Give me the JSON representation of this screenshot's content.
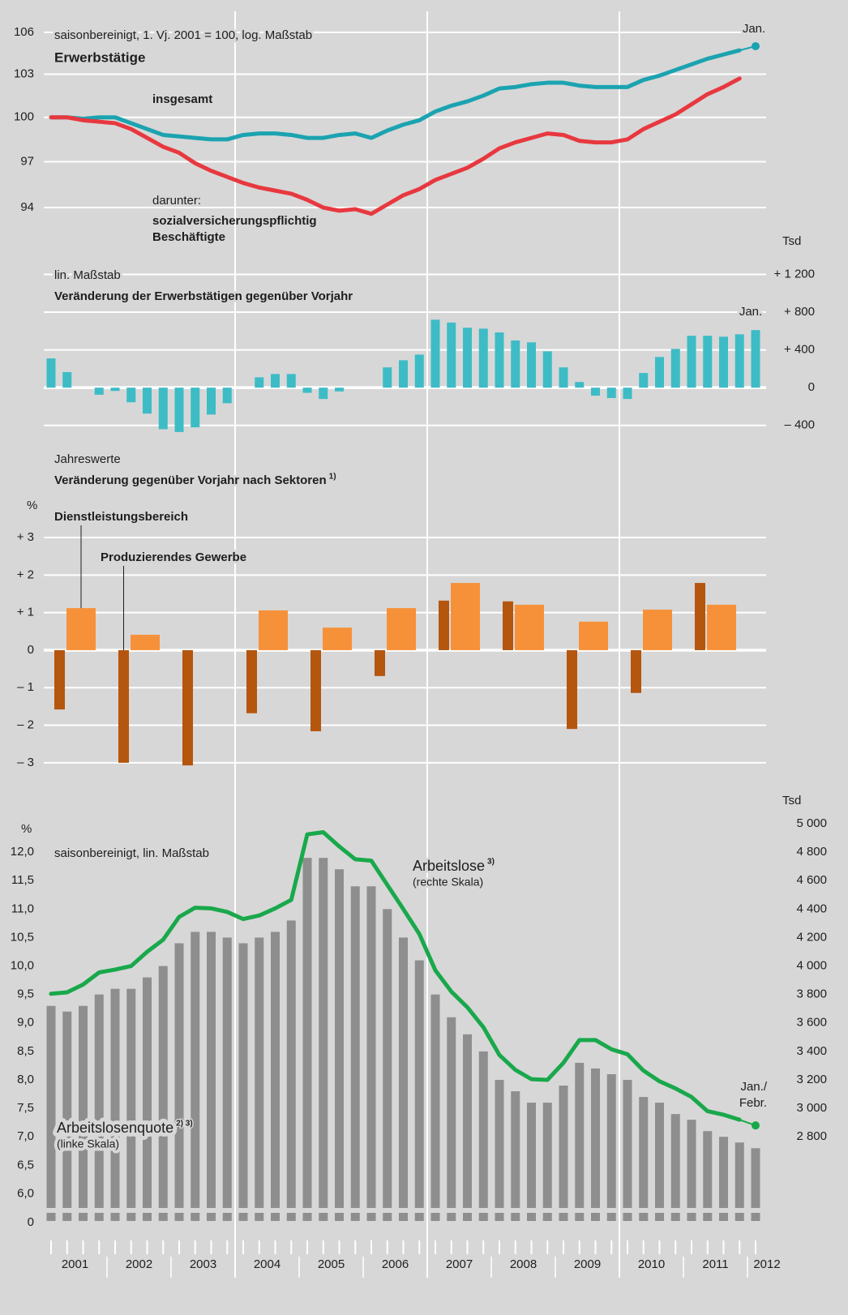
{
  "x_axis": {
    "labels": [
      "2001",
      "2002",
      "2003",
      "2004",
      "2005",
      "2006",
      "2007",
      "2008",
      "2009",
      "2010",
      "2011",
      "2012"
    ]
  },
  "chart_data": [
    {
      "type": "line",
      "subtitle": "saisonbereinigt, 1. Vj. 2001 = 100, log. Maßstab",
      "title": "Erwerbstätige",
      "end_label": "Jan.",
      "group_label": "darunter:",
      "log_scale": true,
      "grid": true,
      "ylim": [
        92.5,
        107
      ],
      "yticks": [
        94,
        97,
        100,
        103,
        106
      ],
      "series": [
        {
          "name": "insgesamt",
          "color": "#1ba3b0",
          "values": [
            100.0,
            100.0,
            99.9,
            100.0,
            100.0,
            99.6,
            99.2,
            98.8,
            98.7,
            98.6,
            98.5,
            98.5,
            98.8,
            98.9,
            98.9,
            98.8,
            98.6,
            98.6,
            98.8,
            98.9,
            98.6,
            99.1,
            99.5,
            99.8,
            100.4,
            100.8,
            101.1,
            101.5,
            102.0,
            102.1,
            102.3,
            102.4,
            102.4,
            102.2,
            102.1,
            102.1,
            102.1,
            102.6,
            102.9,
            103.3,
            103.7,
            104.1,
            104.4,
            104.7,
            105.0
          ]
        },
        {
          "name": "sozialversicherungspflichtig Beschäftigte",
          "color": "#e8383f",
          "values": [
            100.0,
            100.0,
            99.8,
            99.7,
            99.6,
            99.2,
            98.6,
            98.0,
            97.6,
            96.9,
            96.4,
            96.0,
            95.6,
            95.3,
            95.1,
            94.9,
            94.5,
            94.0,
            93.8,
            93.9,
            93.6,
            94.2,
            94.8,
            95.2,
            95.8,
            96.2,
            96.6,
            97.2,
            97.9,
            98.3,
            98.6,
            98.9,
            98.8,
            98.4,
            98.3,
            98.3,
            98.5,
            99.2,
            99.7,
            100.2,
            100.9,
            101.6,
            102.1,
            102.7,
            null
          ]
        }
      ]
    },
    {
      "type": "bar",
      "unit": "Tsd",
      "subtitle": "lin. Maßstab",
      "title": "Veränderung der Erwerbstätigen gegenüber Vorjahr",
      "end_label": "Jan.",
      "color": "#3dbcc6",
      "grid": true,
      "ylim": [
        -600,
        1350
      ],
      "yticks": [
        {
          "value": 1200,
          "label": "+ 1 200"
        },
        {
          "value": 800,
          "label": "+ 800"
        },
        {
          "value": 400,
          "label": "+ 400"
        },
        0,
        {
          "value": -400,
          "label": "– 400"
        }
      ],
      "values": [
        310,
        165,
        0,
        -75,
        -35,
        -155,
        -275,
        -440,
        -470,
        -420,
        -285,
        -165,
        0,
        110,
        145,
        145,
        -55,
        -120,
        -40,
        0,
        0,
        215,
        290,
        350,
        720,
        690,
        635,
        625,
        585,
        500,
        480,
        385,
        215,
        60,
        -85,
        -110,
        -120,
        155,
        325,
        410,
        550,
        550,
        540,
        565,
        610
      ]
    },
    {
      "type": "grouped_bar",
      "subtitle": "Jahreswerte",
      "title": "Veränderung gegenüber Vorjahr nach Sektoren",
      "title_note": "1)",
      "unit": "%",
      "grid": true,
      "ylim": [
        -3.5,
        3.8
      ],
      "yticks": [
        {
          "value": 3,
          "label": "+ 3"
        },
        {
          "value": 2,
          "label": "+ 2"
        },
        {
          "value": 1,
          "label": "+ 1"
        },
        0,
        {
          "value": -1,
          "label": "– 1"
        },
        {
          "value": -2,
          "label": "– 2"
        },
        {
          "value": -3,
          "label": "– 3"
        }
      ],
      "series": [
        {
          "name": "Produzierendes Gewerbe",
          "color": "#b5560f",
          "values": [
            -1.58,
            -3.0,
            -3.07,
            -1.68,
            -2.16,
            -0.69,
            1.32,
            1.3,
            -2.1,
            -1.14,
            1.79
          ]
        },
        {
          "name": "Dienstleistungsbereich",
          "color": "#f6913a",
          "values": [
            1.12,
            0.41,
            0,
            1.06,
            0.6,
            1.12,
            1.79,
            1.21,
            0.76,
            1.08,
            1.21
          ]
        }
      ]
    },
    {
      "type": "bar_line",
      "unit": "%",
      "y2unit": "Tsd",
      "subtitle": "saisonbereinigt, lin. Maßstab",
      "end_label": "Jan./ Febr.",
      "ylim": [
        0,
        12.5
      ],
      "yticks": [
        0,
        {
          "value": 6.0,
          "label": "6,0"
        },
        {
          "value": 6.5,
          "label": "6,5"
        },
        {
          "value": 7.0,
          "label": "7,0"
        },
        {
          "value": 7.5,
          "label": "7,5"
        },
        {
          "value": 8.0,
          "label": "8,0"
        },
        {
          "value": 8.5,
          "label": "8,5"
        },
        {
          "value": 9.0,
          "label": "9,0"
        },
        {
          "value": 9.5,
          "label": "9,5"
        },
        {
          "value": 10.0,
          "label": "10,0"
        },
        {
          "value": 10.5,
          "label": "10,5"
        },
        {
          "value": 11.0,
          "label": "11,0"
        },
        {
          "value": 11.5,
          "label": "11,5"
        },
        {
          "value": 12.0,
          "label": "12,0"
        }
      ],
      "y2lim": [
        2300,
        5000
      ],
      "y2ticks": [
        {
          "value": 5000,
          "label": "5 000"
        },
        {
          "value": 4800,
          "label": "4 800"
        },
        {
          "value": 4600,
          "label": "4 600"
        },
        {
          "value": 4400,
          "label": "4 400"
        },
        {
          "value": 4200,
          "label": "4 200"
        },
        {
          "value": 4000,
          "label": "4 000"
        },
        {
          "value": 3800,
          "label": "3 800"
        },
        {
          "value": 3600,
          "label": "3 600"
        },
        {
          "value": 3400,
          "label": "3 400"
        },
        {
          "value": 3200,
          "label": "3 200"
        },
        {
          "value": 3000,
          "label": "3 000"
        },
        {
          "value": 2800,
          "label": "2 800"
        }
      ],
      "series": [
        {
          "name": "Arbeitslosenquote",
          "note": "2) 3)",
          "sublabel": "(linke Skala)",
          "color": "#8e8e8e",
          "values": [
            9.3,
            9.2,
            9.3,
            9.5,
            9.6,
            9.6,
            9.8,
            10.0,
            10.4,
            10.6,
            10.6,
            10.5,
            10.4,
            10.5,
            10.6,
            10.8,
            11.9,
            11.9,
            11.7,
            11.4,
            11.4,
            11.0,
            10.5,
            10.1,
            9.5,
            9.1,
            8.8,
            8.5,
            8.0,
            7.8,
            7.6,
            7.6,
            7.9,
            8.3,
            8.2,
            8.1,
            8.0,
            7.7,
            7.6,
            7.4,
            7.3,
            7.1,
            7.0,
            6.9,
            6.8
          ]
        },
        {
          "name": "Arbeitslose",
          "note": "3)",
          "sublabel": "(rechte Skala)",
          "color": "#19a84b",
          "axis": "y2",
          "values": [
            3805,
            3815,
            3870,
            3955,
            3975,
            4000,
            4100,
            4185,
            4345,
            4410,
            4405,
            4380,
            4330,
            4355,
            4405,
            4465,
            4925,
            4940,
            4840,
            4750,
            4740,
            4570,
            4400,
            4225,
            3970,
            3820,
            3710,
            3570,
            3375,
            3270,
            3205,
            3200,
            3320,
            3480,
            3480,
            3415,
            3380,
            3265,
            3190,
            3140,
            3080,
            2980,
            2955,
            2920,
            2880
          ]
        }
      ]
    }
  ]
}
